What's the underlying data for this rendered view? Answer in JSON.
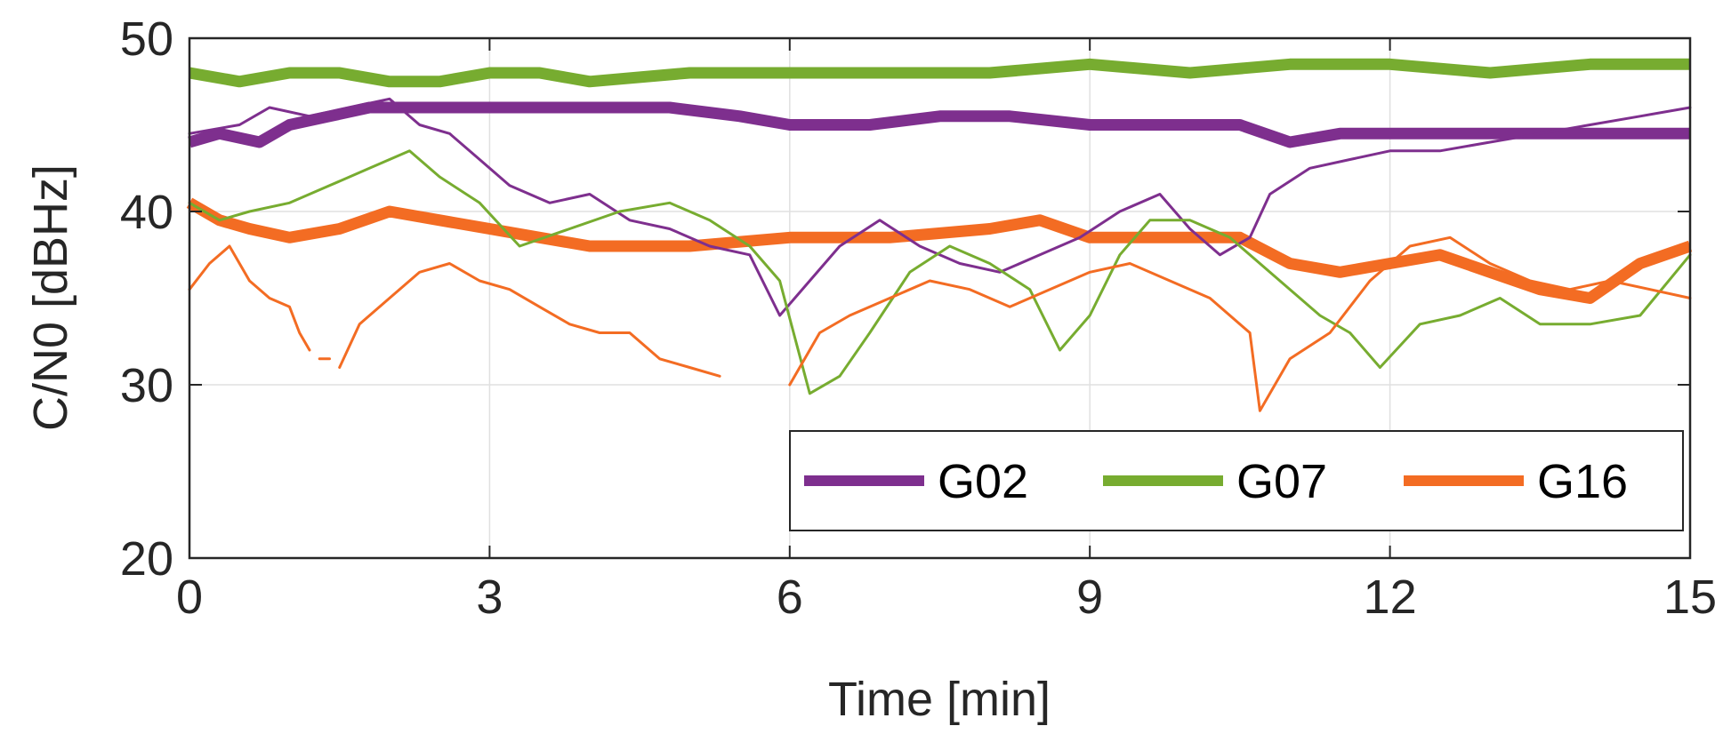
{
  "chart_data": {
    "type": "line",
    "title": "",
    "xlabel": "Time [min]",
    "ylabel": "C/N0 [dBHz]",
    "xlim": [
      0,
      15
    ],
    "ylim": [
      20,
      50
    ],
    "xticks": [
      0,
      3,
      6,
      9,
      12,
      15
    ],
    "yticks": [
      20,
      30,
      40,
      50
    ],
    "grid": true,
    "legend": {
      "placement": "bottom-right",
      "orientation": "horizontal"
    },
    "series": [
      {
        "name": "G02",
        "color": "#7E2F8E",
        "raw": {
          "x": [
            0,
            0.5,
            0.8,
            1.2,
            1.6,
            2.0,
            2.3,
            2.6,
            2.9,
            3.2,
            3.6,
            4.0,
            4.4,
            4.8,
            5.2,
            5.6,
            5.9,
            6.2,
            6.5,
            6.9,
            7.3,
            7.7,
            8.1,
            8.5,
            8.9,
            9.3,
            9.7,
            10.0,
            10.3,
            10.6,
            10.8,
            11.2,
            11.6,
            12.0,
            12.5,
            13.0,
            13.5,
            14.0,
            14.5,
            15.0
          ],
          "y": [
            44.5,
            45.0,
            46.0,
            45.5,
            46.0,
            46.5,
            45.0,
            44.5,
            43.0,
            41.5,
            40.5,
            41.0,
            39.5,
            39.0,
            38.0,
            37.5,
            34.0,
            36.0,
            38.0,
            39.5,
            38.0,
            37.0,
            36.5,
            37.5,
            38.5,
            40.0,
            41.0,
            39.0,
            37.5,
            38.5,
            41.0,
            42.5,
            43.0,
            43.5,
            43.5,
            44.0,
            44.5,
            45.0,
            45.5,
            46.0
          ]
        },
        "tracked": {
          "x": [
            0,
            0.3,
            0.7,
            1.0,
            1.4,
            1.8,
            2.2,
            2.7,
            3.2,
            3.7,
            4.2,
            4.8,
            5.5,
            6.0,
            6.8,
            7.5,
            8.2,
            9.0,
            9.8,
            10.5,
            11.0,
            11.5,
            12.0,
            13.0,
            14.0,
            15.0
          ],
          "y": [
            44.0,
            44.5,
            44.0,
            45.0,
            45.5,
            46.0,
            46.0,
            46.0,
            46.0,
            46.0,
            46.0,
            46.0,
            45.5,
            45.0,
            45.0,
            45.5,
            45.5,
            45.0,
            45.0,
            45.0,
            44.0,
            44.5,
            44.5,
            44.5,
            44.5,
            44.5
          ]
        }
      },
      {
        "name": "G07",
        "color": "#77AC30",
        "raw": {
          "x": [
            0,
            0.3,
            0.6,
            1.0,
            1.4,
            1.8,
            2.2,
            2.5,
            2.9,
            3.3,
            3.8,
            4.3,
            4.8,
            5.2,
            5.6,
            5.9,
            6.2,
            6.5,
            6.8,
            7.2,
            7.6,
            8.0,
            8.4,
            8.7,
            9.0,
            9.3,
            9.6,
            10.0,
            10.4,
            10.8,
            11.0,
            11.3,
            11.6,
            11.9,
            12.3,
            12.7,
            13.1,
            13.5,
            14.0,
            14.5,
            15.0
          ],
          "y": [
            40.5,
            39.5,
            40.0,
            40.5,
            41.5,
            42.5,
            43.5,
            42.0,
            40.5,
            38.0,
            39.0,
            40.0,
            40.5,
            39.5,
            38.0,
            36.0,
            29.5,
            30.5,
            33.0,
            36.5,
            38.0,
            37.0,
            35.5,
            32.0,
            34.0,
            37.5,
            39.5,
            39.5,
            38.5,
            36.5,
            35.5,
            34.0,
            33.0,
            31.0,
            33.5,
            34.0,
            35.0,
            33.5,
            33.5,
            34.0,
            37.5
          ]
        },
        "tracked": {
          "x": [
            0,
            0.5,
            1.0,
            1.5,
            2.0,
            2.5,
            3.0,
            3.5,
            4.0,
            5.0,
            6.0,
            7.0,
            8.0,
            9.0,
            10.0,
            11.0,
            12.0,
            13.0,
            14.0,
            15.0
          ],
          "y": [
            48.0,
            47.5,
            48.0,
            48.0,
            47.5,
            47.5,
            48.0,
            48.0,
            47.5,
            48.0,
            48.0,
            48.0,
            48.0,
            48.5,
            48.0,
            48.5,
            48.5,
            48.0,
            48.5,
            48.5
          ]
        }
      },
      {
        "name": "G16",
        "color": "#F36C23",
        "raw_segments": [
          {
            "x": [
              0,
              0.2,
              0.4,
              0.6,
              0.8,
              1.0,
              1.1,
              1.2
            ],
            "y": [
              35.5,
              37.0,
              38.0,
              36.0,
              35.0,
              34.5,
              33.0,
              32.0
            ]
          },
          {
            "x": [
              1.3,
              1.4
            ],
            "y": [
              31.5,
              31.5
            ]
          },
          {
            "x": [
              1.5,
              1.7,
              2.0,
              2.3,
              2.6,
              2.9,
              3.2,
              3.5,
              3.8,
              4.1,
              4.4,
              4.7,
              5.0,
              5.3
            ],
            "y": [
              31.0,
              33.5,
              35.0,
              36.5,
              37.0,
              36.0,
              35.5,
              34.5,
              33.5,
              33.0,
              33.0,
              31.5,
              31.0,
              30.5
            ]
          },
          {
            "x": [
              6.0,
              6.3,
              6.6,
              7.0,
              7.4,
              7.8,
              8.2,
              8.6,
              9.0,
              9.4,
              9.8,
              10.2,
              10.6,
              10.7,
              11.0,
              11.4,
              11.8,
              12.2,
              12.6,
              13.0,
              13.4,
              13.8,
              14.2,
              14.6,
              15.0
            ],
            "y": [
              30.0,
              33.0,
              34.0,
              35.0,
              36.0,
              35.5,
              34.5,
              35.5,
              36.5,
              37.0,
              36.0,
              35.0,
              33.0,
              28.5,
              31.5,
              33.0,
              36.0,
              38.0,
              38.5,
              37.0,
              36.0,
              35.5,
              36.0,
              35.5,
              35.0
            ]
          }
        ],
        "tracked": {
          "x": [
            0,
            0.3,
            0.6,
            1.0,
            1.5,
            2.0,
            2.5,
            3.0,
            3.5,
            4.0,
            5.0,
            6.0,
            7.0,
            8.0,
            8.5,
            9.0,
            10.0,
            10.5,
            11.0,
            11.5,
            12.0,
            12.5,
            13.0,
            13.5,
            14.0,
            14.5,
            15.0
          ],
          "y": [
            40.5,
            39.5,
            39.0,
            38.5,
            39.0,
            40.0,
            39.5,
            39.0,
            38.5,
            38.0,
            38.0,
            38.5,
            38.5,
            39.0,
            39.5,
            38.5,
            38.5,
            38.5,
            37.0,
            36.5,
            37.0,
            37.5,
            36.5,
            35.5,
            35.0,
            37.0,
            38.0
          ]
        }
      }
    ]
  }
}
